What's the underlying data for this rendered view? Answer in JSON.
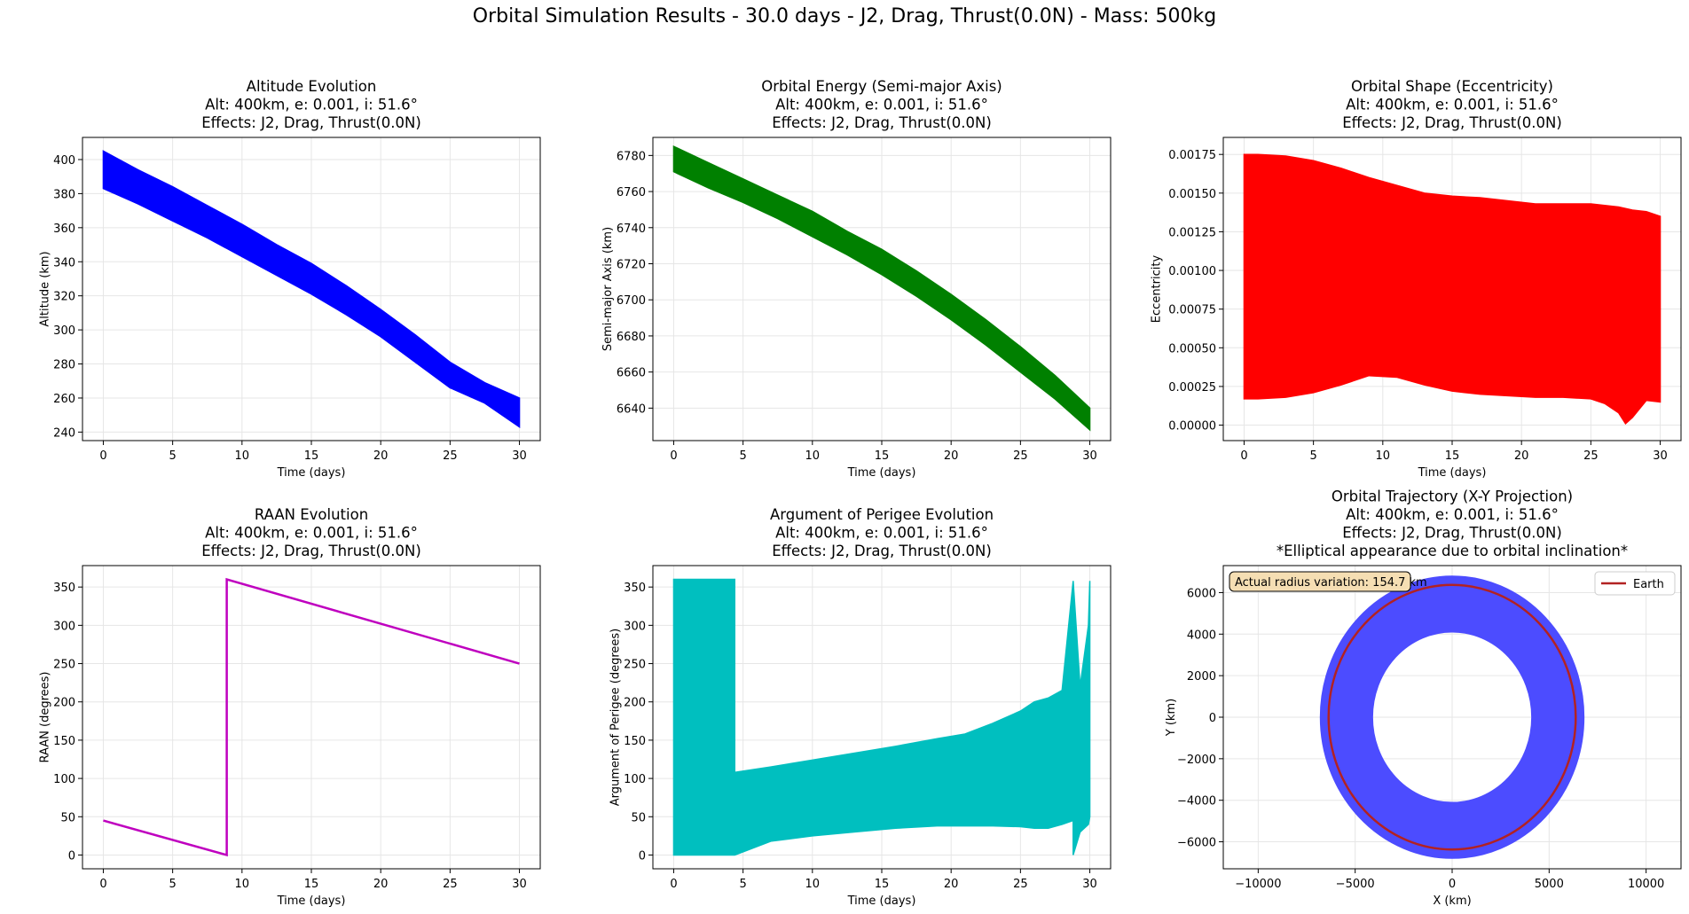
{
  "figure": {
    "suptitle": "Orbital Simulation Results - 30.0 days - J2, Drag, Thrust(0.0N) - Mass: 500kg"
  },
  "chart_data": [
    {
      "id": "altitude",
      "type": "area",
      "title": [
        "Altitude Evolution",
        "Alt: 400km, e: 0.001, i: 51.6°",
        "Effects: J2, Drag, Thrust(0.0N)"
      ],
      "xlabel": "Time (days)",
      "ylabel": "Altitude (km)",
      "xlim": [
        -1.5,
        31.5
      ],
      "ylim": [
        235,
        413
      ],
      "xticks": [
        0,
        5,
        10,
        15,
        20,
        25,
        30
      ],
      "yticks": [
        240,
        260,
        280,
        300,
        320,
        340,
        360,
        380,
        400
      ],
      "grid": true,
      "color": "#0000ff",
      "series": [
        {
          "x": [
            0,
            2.5,
            5,
            7.5,
            10,
            12.5,
            15,
            17.5,
            20,
            22.5,
            25,
            27.5,
            30
          ],
          "upper": [
            405,
            394,
            384,
            373,
            362,
            350,
            339,
            326,
            312,
            297,
            281,
            269,
            260
          ],
          "lower": [
            383,
            374,
            364,
            354,
            343,
            332,
            321,
            309,
            296,
            281,
            266,
            257,
            243
          ]
        }
      ]
    },
    {
      "id": "semi-major-axis",
      "type": "area",
      "title": [
        "Orbital Energy (Semi-major Axis)",
        "Alt: 400km, e: 0.001, i: 51.6°",
        "Effects: J2, Drag, Thrust(0.0N)"
      ],
      "xlabel": "Time (days)",
      "ylabel": "Semi-major Axis (km)",
      "xlim": [
        -1.5,
        31.5
      ],
      "ylim": [
        6622,
        6790
      ],
      "xticks": [
        0,
        5,
        10,
        15,
        20,
        25,
        30
      ],
      "yticks": [
        6640,
        6660,
        6680,
        6700,
        6720,
        6740,
        6760,
        6780
      ],
      "grid": true,
      "color": "#008000",
      "series": [
        {
          "x": [
            0,
            2.5,
            5,
            7.5,
            10,
            12.5,
            15,
            17.5,
            20,
            22.5,
            25,
            27.5,
            30
          ],
          "upper": [
            6785,
            6776,
            6767,
            6758,
            6749,
            6738,
            6728,
            6716,
            6703,
            6689,
            6674,
            6658,
            6640
          ],
          "lower": [
            6771,
            6762,
            6754,
            6745,
            6735,
            6725,
            6714,
            6702,
            6689,
            6675,
            6660,
            6645,
            6628
          ]
        }
      ]
    },
    {
      "id": "eccentricity",
      "type": "area",
      "title": [
        "Orbital Shape (Eccentricity)",
        "Alt: 400km, e: 0.001, i: 51.6°",
        "Effects: J2, Drag, Thrust(0.0N)"
      ],
      "xlabel": "Time (days)",
      "ylabel": "Eccentricity",
      "xlim": [
        -1.5,
        31.5
      ],
      "ylim": [
        -0.0001,
        0.00186
      ],
      "xticks": [
        0,
        5,
        10,
        15,
        20,
        25,
        30
      ],
      "yticks": [
        0.0,
        0.00025,
        0.0005,
        0.00075,
        0.001,
        0.00125,
        0.0015,
        0.00175
      ],
      "ytick_labels": [
        "0.00000",
        "0.00025",
        "0.00050",
        "0.00075",
        "0.00100",
        "0.00125",
        "0.00150",
        "0.00175"
      ],
      "grid": true,
      "color": "#ff0000",
      "series": [
        {
          "x": [
            0,
            1,
            3,
            5,
            7,
            9,
            11,
            13,
            15,
            17,
            19,
            21,
            23,
            25,
            26,
            27,
            27.5,
            28,
            29,
            30
          ],
          "upper": [
            0.00175,
            0.00175,
            0.00174,
            0.00171,
            0.00166,
            0.0016,
            0.00155,
            0.0015,
            0.00148,
            0.00147,
            0.00145,
            0.00143,
            0.00143,
            0.00143,
            0.00142,
            0.00141,
            0.0014,
            0.00139,
            0.00138,
            0.00135
          ],
          "lower": [
            0.00017,
            0.00017,
            0.00018,
            0.00021,
            0.00026,
            0.00032,
            0.00031,
            0.00026,
            0.00022,
            0.0002,
            0.00019,
            0.00018,
            0.00018,
            0.00017,
            0.00014,
            8e-05,
            1e-05,
            5e-05,
            0.00016,
            0.00015
          ]
        }
      ]
    },
    {
      "id": "raan",
      "type": "line",
      "title": [
        "RAAN Evolution",
        "Alt: 400km, e: 0.001, i: 51.6°",
        "Effects: J2, Drag, Thrust(0.0N)"
      ],
      "xlabel": "Time (days)",
      "ylabel": "RAAN (degrees)",
      "xlim": [
        -1.5,
        31.5
      ],
      "ylim": [
        -18,
        378
      ],
      "xticks": [
        0,
        5,
        10,
        15,
        20,
        25,
        30
      ],
      "yticks": [
        0,
        50,
        100,
        150,
        200,
        250,
        300,
        350
      ],
      "grid": true,
      "color": "#bf00bf",
      "series": [
        {
          "x": [
            0,
            8.9,
            8.9,
            30
          ],
          "y": [
            45,
            0,
            360,
            250
          ]
        }
      ]
    },
    {
      "id": "argument-of-perigee",
      "type": "area",
      "title": [
        "Argument of Perigee Evolution",
        "Alt: 400km, e: 0.001, i: 51.6°",
        "Effects: J2, Drag, Thrust(0.0N)"
      ],
      "xlabel": "Time (days)",
      "ylabel": "Argument of Perigee (degrees)",
      "xlim": [
        -1.5,
        31.5
      ],
      "ylim": [
        -18,
        378
      ],
      "xticks": [
        0,
        5,
        10,
        15,
        20,
        25,
        30
      ],
      "yticks": [
        0,
        50,
        100,
        150,
        200,
        250,
        300,
        350
      ],
      "grid": true,
      "color": "#00bfbf",
      "series": [
        {
          "x": [
            0,
            4.4,
            4.4,
            7,
            10,
            13,
            16,
            19,
            21,
            23,
            25,
            26,
            27,
            28,
            28.8,
            28.8,
            29.3,
            29.9,
            30
          ],
          "upper": [
            360,
            360,
            108,
            115,
            124,
            133,
            142,
            152,
            158,
            172,
            188,
            200,
            205,
            215,
            358,
            358,
            220,
            300,
            358
          ],
          "lower": [
            0,
            0,
            0,
            18,
            25,
            30,
            35,
            38,
            38,
            38,
            37,
            35,
            35,
            40,
            45,
            0,
            30,
            40,
            50
          ]
        }
      ]
    },
    {
      "id": "trajectory",
      "type": "scatter",
      "title": [
        "Orbital Trajectory (X-Y Projection)",
        "Alt: 400km, e: 0.001, i: 51.6°",
        "Effects: J2, Drag, Thrust(0.0N)",
        "*Elliptical appearance due to orbital inclination*"
      ],
      "xlabel": "X (km)",
      "ylabel": "Y (km)",
      "xlim": [
        -11800,
        11800
      ],
      "ylim": [
        -7300,
        7300
      ],
      "xticks": [
        -10000,
        -5000,
        0,
        5000,
        10000
      ],
      "yticks": [
        -6000,
        -4000,
        -2000,
        0,
        2000,
        4000,
        6000
      ],
      "grid": true,
      "color": "#4c4cff",
      "track": {
        "x_outer": 6800,
        "y_outer": 6800,
        "x_inner": 4100,
        "y_inner": 4100
      },
      "earth": {
        "radius": 6371,
        "color": "#b22222"
      },
      "legend": {
        "position": "upper-right",
        "entries": [
          "Earth"
        ]
      },
      "annotation": "Actual radius variation: 154.7 km"
    }
  ]
}
